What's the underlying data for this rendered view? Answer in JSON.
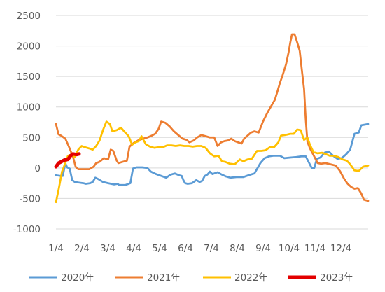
{
  "chart_data": {
    "type": "line",
    "x_ticks": [
      "1/4",
      "2/4",
      "3/4",
      "4/4",
      "5/4",
      "6/4",
      "7/4",
      "8/4",
      "9/4",
      "10/4",
      "11/4",
      "12/4"
    ],
    "y_ticks": [
      -1000,
      -500,
      0,
      500,
      1000,
      1500,
      2000,
      2500
    ],
    "ylim": [
      -1000,
      2500
    ],
    "xlim": [
      1,
      366
    ],
    "grid": "horizontal",
    "legend": "bottom",
    "series": [
      {
        "name": "2020年",
        "color": "#5b9bd5",
        "points": [
          [
            1,
            -120
          ],
          [
            6,
            -130
          ],
          [
            9,
            -130
          ],
          [
            12,
            80
          ],
          [
            14,
            10
          ],
          [
            17,
            -10
          ],
          [
            20,
            -200
          ],
          [
            23,
            -230
          ],
          [
            28,
            -240
          ],
          [
            33,
            -250
          ],
          [
            36,
            -260
          ],
          [
            41,
            -250
          ],
          [
            44,
            -230
          ],
          [
            47,
            -160
          ],
          [
            50,
            -180
          ],
          [
            56,
            -230
          ],
          [
            62,
            -250
          ],
          [
            69,
            -270
          ],
          [
            73,
            -260
          ],
          [
            75,
            -280
          ],
          [
            82,
            -280
          ],
          [
            88,
            -250
          ],
          [
            91,
            -10
          ],
          [
            95,
            10
          ],
          [
            102,
            10
          ],
          [
            108,
            0
          ],
          [
            112,
            -60
          ],
          [
            118,
            -100
          ],
          [
            124,
            -130
          ],
          [
            130,
            -160
          ],
          [
            135,
            -110
          ],
          [
            140,
            -90
          ],
          [
            145,
            -120
          ],
          [
            148,
            -130
          ],
          [
            150,
            -200
          ],
          [
            152,
            -250
          ],
          [
            155,
            -260
          ],
          [
            160,
            -250
          ],
          [
            165,
            -200
          ],
          [
            169,
            -230
          ],
          [
            172,
            -210
          ],
          [
            175,
            -130
          ],
          [
            178,
            -110
          ],
          [
            181,
            -60
          ],
          [
            184,
            -100
          ],
          [
            190,
            -70
          ],
          [
            195,
            -110
          ],
          [
            200,
            -140
          ],
          [
            205,
            -160
          ],
          [
            212,
            -150
          ],
          [
            220,
            -150
          ],
          [
            226,
            -120
          ],
          [
            233,
            -90
          ],
          [
            240,
            80
          ],
          [
            245,
            160
          ],
          [
            250,
            190
          ],
          [
            255,
            200
          ],
          [
            263,
            200
          ],
          [
            268,
            160
          ],
          [
            275,
            170
          ],
          [
            282,
            180
          ],
          [
            288,
            190
          ],
          [
            293,
            190
          ],
          [
            300,
            0
          ],
          [
            303,
            0
          ],
          [
            306,
            150
          ],
          [
            310,
            170
          ],
          [
            315,
            250
          ],
          [
            320,
            270
          ],
          [
            325,
            200
          ],
          [
            330,
            150
          ],
          [
            335,
            160
          ],
          [
            340,
            220
          ],
          [
            345,
            300
          ],
          [
            350,
            560
          ],
          [
            355,
            580
          ],
          [
            358,
            700
          ],
          [
            366,
            720
          ]
        ]
      },
      {
        "name": "2021年",
        "color": "#ed7d31",
        "points": [
          [
            1,
            720
          ],
          [
            4,
            550
          ],
          [
            7,
            530
          ],
          [
            12,
            480
          ],
          [
            17,
            320
          ],
          [
            21,
            180
          ],
          [
            24,
            20
          ],
          [
            27,
            -20
          ],
          [
            32,
            -20
          ],
          [
            40,
            -20
          ],
          [
            45,
            20
          ],
          [
            48,
            80
          ],
          [
            52,
            100
          ],
          [
            57,
            160
          ],
          [
            62,
            140
          ],
          [
            65,
            300
          ],
          [
            68,
            280
          ],
          [
            72,
            120
          ],
          [
            74,
            80
          ],
          [
            79,
            100
          ],
          [
            84,
            120
          ],
          [
            87,
            350
          ],
          [
            92,
            410
          ],
          [
            97,
            450
          ],
          [
            103,
            480
          ],
          [
            108,
            500
          ],
          [
            113,
            530
          ],
          [
            117,
            560
          ],
          [
            121,
            640
          ],
          [
            124,
            760
          ],
          [
            129,
            740
          ],
          [
            134,
            680
          ],
          [
            139,
            600
          ],
          [
            144,
            540
          ],
          [
            149,
            480
          ],
          [
            154,
            460
          ],
          [
            157,
            420
          ],
          [
            162,
            450
          ],
          [
            166,
            500
          ],
          [
            171,
            540
          ],
          [
            176,
            520
          ],
          [
            181,
            500
          ],
          [
            186,
            500
          ],
          [
            190,
            360
          ],
          [
            194,
            420
          ],
          [
            198,
            440
          ],
          [
            202,
            450
          ],
          [
            206,
            480
          ],
          [
            210,
            440
          ],
          [
            214,
            420
          ],
          [
            218,
            400
          ],
          [
            221,
            480
          ],
          [
            225,
            530
          ],
          [
            229,
            580
          ],
          [
            233,
            600
          ],
          [
            238,
            580
          ],
          [
            243,
            760
          ],
          [
            248,
            900
          ],
          [
            252,
            1000
          ],
          [
            257,
            1120
          ],
          [
            260,
            1260
          ],
          [
            263,
            1400
          ],
          [
            266,
            1520
          ],
          [
            270,
            1700
          ],
          [
            273,
            1900
          ],
          [
            275,
            2060
          ],
          [
            277,
            2190
          ],
          [
            280,
            2190
          ],
          [
            283,
            2060
          ],
          [
            286,
            1920
          ],
          [
            289,
            1540
          ],
          [
            291,
            1300
          ],
          [
            293,
            800
          ],
          [
            295,
            430
          ],
          [
            298,
            320
          ],
          [
            301,
            240
          ],
          [
            304,
            160
          ],
          [
            307,
            80
          ],
          [
            311,
            70
          ],
          [
            316,
            80
          ],
          [
            322,
            60
          ],
          [
            328,
            40
          ],
          [
            333,
            -50
          ],
          [
            338,
            -180
          ],
          [
            342,
            -260
          ],
          [
            346,
            -310
          ],
          [
            350,
            -340
          ],
          [
            354,
            -330
          ],
          [
            358,
            -420
          ],
          [
            361,
            -520
          ],
          [
            366,
            -540
          ]
        ]
      },
      {
        "name": "2022年",
        "color": "#ffc000",
        "points": [
          [
            1,
            -560
          ],
          [
            4,
            -360
          ],
          [
            8,
            -60
          ],
          [
            12,
            80
          ],
          [
            15,
            200
          ],
          [
            19,
            220
          ],
          [
            23,
            180
          ],
          [
            27,
            300
          ],
          [
            31,
            360
          ],
          [
            35,
            340
          ],
          [
            40,
            320
          ],
          [
            44,
            300
          ],
          [
            48,
            360
          ],
          [
            52,
            450
          ],
          [
            56,
            620
          ],
          [
            60,
            760
          ],
          [
            64,
            720
          ],
          [
            67,
            600
          ],
          [
            72,
            620
          ],
          [
            77,
            660
          ],
          [
            82,
            580
          ],
          [
            86,
            520
          ],
          [
            90,
            380
          ],
          [
            94,
            420
          ],
          [
            98,
            440
          ],
          [
            101,
            520
          ],
          [
            106,
            390
          ],
          [
            111,
            350
          ],
          [
            116,
            330
          ],
          [
            121,
            340
          ],
          [
            126,
            340
          ],
          [
            131,
            370
          ],
          [
            136,
            370
          ],
          [
            141,
            360
          ],
          [
            146,
            370
          ],
          [
            151,
            360
          ],
          [
            156,
            360
          ],
          [
            161,
            350
          ],
          [
            166,
            360
          ],
          [
            171,
            360
          ],
          [
            176,
            330
          ],
          [
            181,
            240
          ],
          [
            186,
            190
          ],
          [
            191,
            200
          ],
          [
            195,
            110
          ],
          [
            199,
            100
          ],
          [
            204,
            70
          ],
          [
            210,
            60
          ],
          [
            216,
            140
          ],
          [
            220,
            110
          ],
          [
            225,
            140
          ],
          [
            230,
            150
          ],
          [
            236,
            280
          ],
          [
            241,
            280
          ],
          [
            246,
            290
          ],
          [
            251,
            340
          ],
          [
            256,
            340
          ],
          [
            261,
            420
          ],
          [
            264,
            530
          ],
          [
            269,
            540
          ],
          [
            275,
            560
          ],
          [
            279,
            560
          ],
          [
            283,
            630
          ],
          [
            287,
            620
          ],
          [
            291,
            460
          ],
          [
            295,
            500
          ],
          [
            298,
            380
          ],
          [
            302,
            260
          ],
          [
            307,
            240
          ],
          [
            312,
            250
          ],
          [
            316,
            230
          ],
          [
            321,
            200
          ],
          [
            326,
            200
          ],
          [
            331,
            180
          ],
          [
            336,
            140
          ],
          [
            341,
            120
          ],
          [
            345,
            60
          ],
          [
            350,
            -40
          ],
          [
            355,
            -50
          ],
          [
            360,
            20
          ],
          [
            366,
            40
          ]
        ]
      },
      {
        "name": "2023年",
        "color": "#e30000",
        "points": [
          [
            1,
            20
          ],
          [
            4,
            80
          ],
          [
            7,
            100
          ],
          [
            11,
            130
          ],
          [
            15,
            140
          ],
          [
            18,
            200
          ],
          [
            21,
            230
          ],
          [
            25,
            220
          ],
          [
            28,
            230
          ]
        ]
      }
    ]
  }
}
